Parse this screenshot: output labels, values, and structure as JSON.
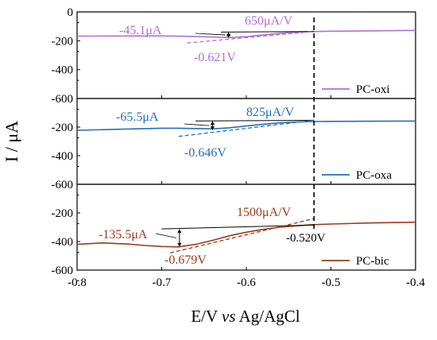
{
  "chart_data": [
    {
      "type": "line",
      "legend": "PC-oxi",
      "color": "#b06fd6",
      "legend_position": "bottom-right",
      "xlim": [
        -0.8,
        -0.4
      ],
      "ylim": [
        -600,
        0
      ],
      "yticks": [
        0,
        -200,
        -400,
        -600
      ],
      "series": [
        {
          "name": "PC-oxi",
          "x": [
            -0.8,
            -0.75,
            -0.7,
            -0.66,
            -0.64,
            -0.62,
            -0.6,
            -0.58,
            -0.56,
            -0.54,
            -0.52,
            -0.5,
            -0.45,
            -0.4
          ],
          "y": [
            -168,
            -167,
            -166,
            -170,
            -174,
            -178,
            -172,
            -160,
            -148,
            -140,
            -136,
            -134,
            -131,
            -128
          ]
        }
      ],
      "annotations": {
        "value": "-45.1μA",
        "slope": "650μA/V",
        "potential": "-0.621V",
        "baseline": {
          "x": [
            -0.63,
            -0.52
          ],
          "y": [
            -140,
            -136
          ]
        },
        "tangent": {
          "x": [
            -0.67,
            -0.52
          ],
          "y": [
            -215,
            -136
          ]
        },
        "arrow": {
          "x": -0.621,
          "y_top": -140,
          "y_bottom": -180
        }
      }
    },
    {
      "type": "line",
      "legend": "PC-oxa",
      "color": "#1f6fc0",
      "legend_position": "bottom-right",
      "xlim": [
        -0.8,
        -0.4
      ],
      "ylim": [
        -600,
        0
      ],
      "yticks": [
        -200,
        -400,
        -600
      ],
      "series": [
        {
          "name": "PC-oxa",
          "x": [
            -0.8,
            -0.75,
            -0.7,
            -0.68,
            -0.66,
            -0.64,
            -0.62,
            -0.6,
            -0.58,
            -0.56,
            -0.54,
            -0.52,
            -0.5,
            -0.45,
            -0.4
          ],
          "y": [
            -222,
            -215,
            -208,
            -208,
            -210,
            -212,
            -205,
            -192,
            -180,
            -170,
            -164,
            -161,
            -160,
            -159,
            -158
          ]
        }
      ],
      "annotations": {
        "value": "-65.5μA",
        "slope": "825μA/V",
        "potential": "-0.646V",
        "baseline": {
          "x": [
            -0.66,
            -0.52
          ],
          "y": [
            -157,
            -152
          ]
        },
        "tangent": {
          "x": [
            -0.68,
            -0.52
          ],
          "y": [
            -265,
            -152
          ]
        },
        "arrow": {
          "x": -0.64,
          "y_top": -157,
          "y_bottom": -222
        }
      }
    },
    {
      "type": "line",
      "legend": "PC-bic",
      "color": "#9b3a1b",
      "legend_position": "bottom-right",
      "xlim": [
        -0.8,
        -0.4
      ],
      "ylim": [
        -600,
        0
      ],
      "yticks": [
        -200,
        -400,
        -600
      ],
      "xticks": [
        -0.8,
        -0.7,
        -0.6,
        -0.5,
        -0.4
      ],
      "series": [
        {
          "name": "PC-bic",
          "x": [
            -0.8,
            -0.77,
            -0.74,
            -0.72,
            -0.7,
            -0.68,
            -0.66,
            -0.64,
            -0.62,
            -0.6,
            -0.58,
            -0.56,
            -0.54,
            -0.52,
            -0.5,
            -0.45,
            -0.4
          ],
          "y": [
            -420,
            -410,
            -418,
            -428,
            -435,
            -438,
            -420,
            -392,
            -360,
            -335,
            -315,
            -300,
            -290,
            -282,
            -278,
            -270,
            -265
          ]
        }
      ],
      "annotations": {
        "value": "-135.5μA",
        "slope": "1500μA/V",
        "potential": "-0.679V",
        "reference_potential": "-0.520V",
        "baseline": {
          "x": [
            -0.7,
            -0.52
          ],
          "y": [
            -312,
            -285
          ]
        },
        "tangent": {
          "x": [
            -0.69,
            -0.52
          ],
          "y": [
            -480,
            -240
          ]
        },
        "arrow": {
          "x": -0.679,
          "y_top": -312,
          "y_bottom": -438
        }
      }
    }
  ],
  "axes": {
    "xlabel_prefix": "E/V ",
    "xlabel_italic": "vs",
    "xlabel_suffix": " Ag/AgCl",
    "ylabel": "I / μA",
    "xtick_labels": [
      "-0.8",
      "-0.7",
      "-0.6",
      "-0.5",
      "-0.4"
    ],
    "vline_x": -0.52
  }
}
